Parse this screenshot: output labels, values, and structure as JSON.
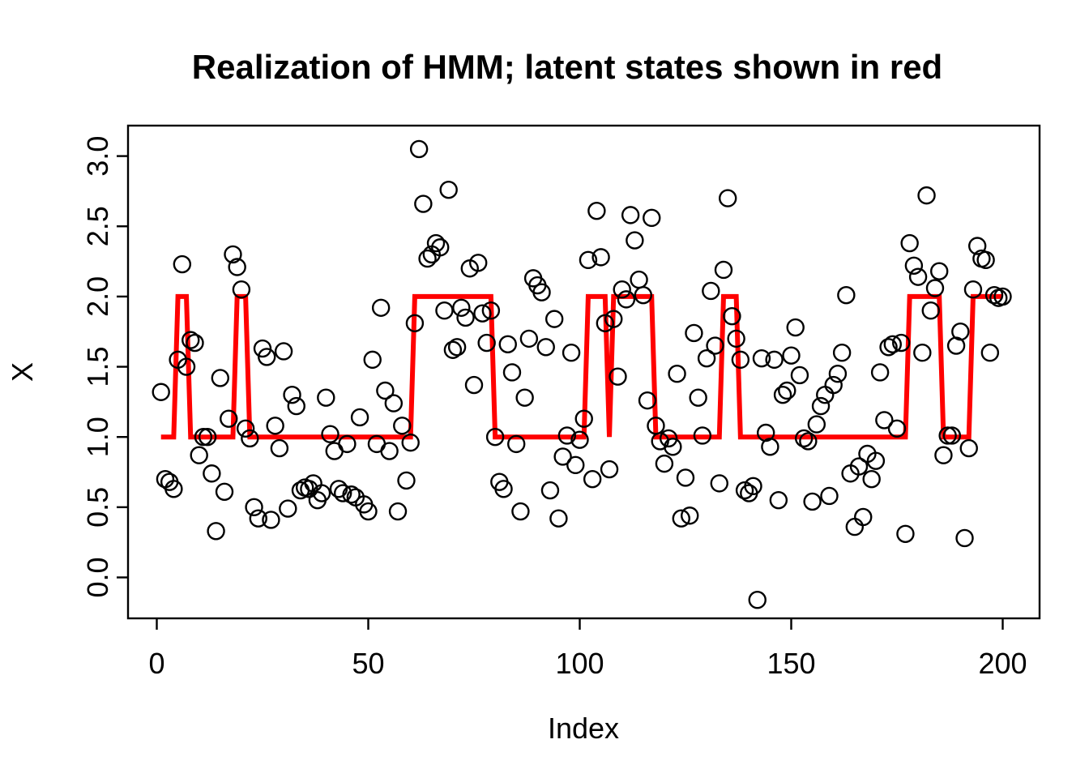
{
  "chart_data": {
    "type": "scatter",
    "title": "Realization of HMM; latent states shown in red",
    "xlabel": "Index",
    "ylabel": "X",
    "x_ticks": [
      0,
      50,
      100,
      150,
      200
    ],
    "y_ticks": [
      "0.0",
      "0.5",
      "1.0",
      "1.5",
      "2.0",
      "2.5",
      "3.0"
    ],
    "y_tick_values": [
      0.0,
      0.5,
      1.0,
      1.5,
      2.0,
      2.5,
      3.0
    ],
    "xlim": [
      -7,
      208
    ],
    "ylim": [
      -0.29,
      3.21
    ],
    "grid": false,
    "legend_position": "none",
    "n_points": 200,
    "x_start": 1,
    "colors": {
      "points": "#000000",
      "latent_line": "#FF0000",
      "background": "#FFFFFF",
      "axis": "#000000"
    },
    "series": [
      {
        "name": "observations",
        "type": "points",
        "marker": "open-circle",
        "values": [
          1.32,
          0.7,
          0.68,
          0.63,
          1.55,
          2.23,
          1.5,
          1.69,
          1.67,
          0.87,
          1.0,
          1.0,
          0.74,
          0.33,
          1.42,
          0.61,
          1.13,
          2.3,
          2.21,
          2.05,
          1.06,
          0.99,
          0.5,
          0.42,
          1.63,
          1.57,
          0.41,
          1.08,
          0.92,
          1.61,
          0.49,
          1.3,
          1.22,
          0.62,
          0.64,
          0.63,
          0.67,
          0.55,
          0.6,
          1.28,
          1.02,
          0.9,
          0.63,
          0.6,
          0.95,
          0.59,
          0.57,
          1.14,
          0.52,
          0.47,
          1.55,
          0.95,
          1.92,
          1.33,
          0.9,
          1.24,
          0.47,
          1.08,
          0.69,
          0.96,
          1.81,
          3.05,
          2.66,
          2.27,
          2.3,
          2.38,
          2.35,
          1.9,
          2.76,
          1.62,
          1.64,
          1.92,
          1.85,
          2.2,
          1.37,
          2.24,
          1.88,
          1.67,
          1.9,
          1.0,
          0.68,
          0.63,
          1.66,
          1.46,
          0.95,
          0.47,
          1.28,
          1.7,
          2.13,
          2.08,
          2.03,
          1.64,
          0.62,
          1.84,
          0.42,
          0.86,
          1.01,
          1.6,
          0.8,
          0.98,
          1.13,
          2.26,
          0.7,
          2.61,
          2.28,
          1.81,
          0.77,
          1.84,
          1.43,
          2.05,
          1.98,
          2.58,
          2.4,
          2.12,
          2.01,
          1.26,
          2.56,
          1.08,
          0.97,
          0.81,
          0.99,
          0.93,
          1.45,
          0.42,
          0.71,
          0.44,
          1.74,
          1.28,
          1.01,
          1.56,
          2.04,
          1.65,
          0.67,
          2.19,
          2.7,
          1.86,
          1.7,
          1.55,
          0.62,
          0.6,
          0.65,
          -0.16,
          1.56,
          1.03,
          0.93,
          1.55,
          0.55,
          1.3,
          1.33,
          1.58,
          1.78,
          1.44,
          0.99,
          0.97,
          0.54,
          1.09,
          1.22,
          1.3,
          0.58,
          1.37,
          1.45,
          1.6,
          2.01,
          0.74,
          0.36,
          0.79,
          0.43,
          0.88,
          0.7,
          0.83,
          1.46,
          1.12,
          1.64,
          1.66,
          1.06,
          1.67,
          0.31,
          2.38,
          2.22,
          2.14,
          1.6,
          2.72,
          1.9,
          2.06,
          2.18,
          0.87,
          1.01,
          1.01,
          1.65,
          1.75,
          0.28,
          0.92,
          2.05,
          2.36,
          2.27,
          2.26,
          1.6,
          2.01,
          1.99,
          2.0
        ]
      },
      {
        "name": "latent_states",
        "type": "step-line",
        "description": "hidden state sequence drawn as red line, value 1 or 2",
        "state_segments": [
          [
            1,
            4,
            1
          ],
          [
            5,
            7,
            2
          ],
          [
            8,
            18,
            1
          ],
          [
            19,
            21,
            2
          ],
          [
            22,
            60,
            1
          ],
          [
            61,
            79,
            2
          ],
          [
            80,
            101,
            1
          ],
          [
            102,
            106,
            2
          ],
          [
            107,
            107,
            1
          ],
          [
            108,
            117,
            2
          ],
          [
            118,
            133,
            1
          ],
          [
            134,
            137,
            2
          ],
          [
            138,
            177,
            1
          ],
          [
            178,
            185,
            2
          ],
          [
            186,
            192,
            1
          ],
          [
            193,
            200,
            2
          ]
        ]
      }
    ]
  }
}
